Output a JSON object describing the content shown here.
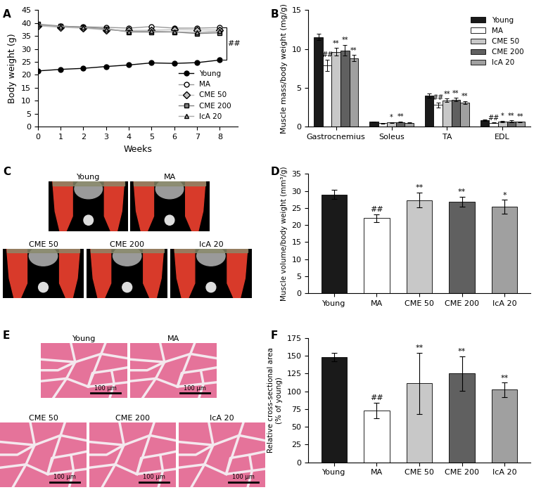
{
  "chart_data": [
    {
      "type": "line",
      "title": "A",
      "x": [
        0,
        1,
        2,
        3,
        4,
        5,
        6,
        7,
        8
      ],
      "xlim": [
        0,
        8.8
      ],
      "xticks": [
        0,
        1,
        2,
        3,
        4,
        5,
        6,
        7,
        8
      ],
      "ylim": [
        0,
        45
      ],
      "yticks": [
        0,
        5,
        10,
        15,
        20,
        25,
        30,
        35,
        40,
        45
      ],
      "x_label": "Weeks",
      "y_label": "Body weight (g)",
      "legend": "lower right",
      "annotation": "##",
      "series": [
        {
          "name": "Young",
          "color": "#000000",
          "marker": "circle",
          "values": [
            21.5,
            22.1,
            22.5,
            23.2,
            23.8,
            24.6,
            24.4,
            24.7,
            25.7
          ]
        },
        {
          "name": "MA",
          "color": "#ffffff",
          "marker": "circle",
          "values": [
            39.0,
            38.7,
            38.5,
            38.3,
            38.0,
            38.6,
            38.0,
            38.0,
            38.2
          ]
        },
        {
          "name": "CME 50",
          "color": "#c0c0c0",
          "marker": "diamond",
          "values": [
            38.9,
            38.3,
            38.0,
            37.3,
            37.1,
            37.2,
            37.4,
            37.3,
            37.3
          ]
        },
        {
          "name": "CME 200",
          "color": "#808080",
          "marker": "square",
          "values": [
            39.5,
            38.8,
            38.3,
            37.8,
            36.5,
            36.5,
            36.5,
            35.9,
            36.2
          ]
        },
        {
          "name": "IcA 20",
          "color": "#a8a8a8",
          "marker": "triangle",
          "values": [
            39.3,
            38.6,
            38.2,
            37.5,
            36.7,
            36.8,
            36.6,
            36.3,
            36.8
          ]
        }
      ]
    },
    {
      "type": "grouped_bar",
      "title": "B",
      "categories": [
        "Gastrocnemius",
        "Soleus",
        "TA",
        "EDL"
      ],
      "ylim": [
        0,
        15
      ],
      "yticks": [
        0,
        5,
        10,
        15
      ],
      "y_label": "Muscle mass/body weight (mg/g)",
      "legend": "upper right",
      "series": [
        {
          "name": "Young",
          "color": "#1a1a1a",
          "values": [
            11.5,
            0.65,
            4.0,
            0.85
          ],
          "errors": [
            0.4,
            0.05,
            0.3,
            0.1
          ],
          "marks": [
            null,
            null,
            null,
            null
          ]
        },
        {
          "name": "MA",
          "color": "#ffffff",
          "values": [
            7.9,
            0.45,
            2.8,
            0.5
          ],
          "errors": [
            0.7,
            0.05,
            0.3,
            0.05
          ],
          "marks": [
            "##",
            null,
            "##",
            "##"
          ]
        },
        {
          "name": "CME 50",
          "color": "#c8c8c8",
          "values": [
            9.6,
            0.55,
            3.4,
            0.65
          ],
          "errors": [
            0.5,
            0.05,
            0.2,
            0.1
          ],
          "marks": [
            "**",
            "*",
            "**",
            "*"
          ]
        },
        {
          "name": "CME 200",
          "color": "#606060",
          "values": [
            9.8,
            0.6,
            3.5,
            0.7
          ],
          "errors": [
            0.7,
            0.05,
            0.2,
            0.1
          ],
          "marks": [
            "**",
            "**",
            "**",
            "**"
          ]
        },
        {
          "name": "IcA 20",
          "color": "#a0a0a0",
          "values": [
            8.8,
            0.5,
            3.1,
            0.65
          ],
          "errors": [
            0.4,
            0.05,
            0.2,
            0.05
          ],
          "marks": [
            "**",
            null,
            "**",
            "**"
          ]
        }
      ]
    },
    {
      "type": "bar",
      "title": "D",
      "categories": [
        "Young",
        "MA",
        "CME 50",
        "CME 200",
        "IcA 20"
      ],
      "values": [
        29.0,
        22.0,
        27.3,
        26.8,
        25.4
      ],
      "errors": [
        1.4,
        1.2,
        2.2,
        1.5,
        2.0
      ],
      "marks": [
        null,
        "##",
        "**",
        "**",
        "*"
      ],
      "colors": [
        "#1a1a1a",
        "#ffffff",
        "#c8c8c8",
        "#606060",
        "#a0a0a0"
      ],
      "ylim": [
        0,
        35
      ],
      "yticks": [
        0,
        5,
        10,
        15,
        20,
        25,
        30,
        35
      ],
      "y_label": "Muscle volume/body weight (mm³/g)"
    },
    {
      "type": "bar",
      "title": "F",
      "categories": [
        "Young",
        "MA",
        "CME 50",
        "CME 200",
        "IcA 20"
      ],
      "values": [
        148,
        73,
        111,
        125,
        102
      ],
      "errors": [
        6,
        11,
        43,
        24,
        10
      ],
      "marks": [
        null,
        "##",
        "**",
        "**",
        "**"
      ],
      "colors": [
        "#1a1a1a",
        "#ffffff",
        "#c8c8c8",
        "#606060",
        "#a0a0a0"
      ],
      "ylim": [
        0,
        175
      ],
      "yticks": [
        0,
        25,
        50,
        75,
        100,
        125,
        150,
        175
      ],
      "y_label": "Relative cross-sectional area\n(% of young)"
    }
  ],
  "images": [
    {
      "type": "ct_image",
      "title": "C",
      "panels": [
        "Young",
        "MA",
        "CME 50",
        "CME 200",
        "IcA 20"
      ]
    },
    {
      "type": "histology_image",
      "title": "E",
      "panels": [
        "Young",
        "MA",
        "CME 50",
        "CME 200",
        "IcA 20"
      ],
      "scale_bar": "100 μm"
    }
  ]
}
